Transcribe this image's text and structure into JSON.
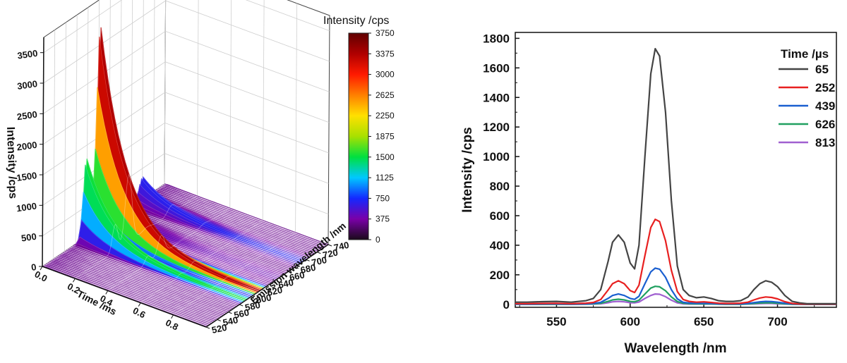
{
  "chart_data": [
    {
      "type": "surface",
      "xlabel": "Time /ms",
      "ylabel": "Emission wavelength /nm",
      "zlabel": "Intensity /cps",
      "xlim": [
        0,
        1.0
      ],
      "ylim": [
        520,
        740
      ],
      "zlim": [
        0,
        3750
      ],
      "x_ticks": [
        "0.0",
        "0.2",
        "0.4",
        "0.6",
        "0.8"
      ],
      "y_ticks": [
        "520",
        "540",
        "560",
        "580",
        "600",
        "620",
        "640",
        "660",
        "680",
        "700",
        "720",
        "740"
      ],
      "z_ticks": [
        "0",
        "500",
        "1000",
        "1500",
        "2000",
        "2500",
        "3000",
        "3500"
      ],
      "colorbar": {
        "title": "Intensity /cps",
        "ticks": [
          "0",
          "375",
          "750",
          "1125",
          "1500",
          "1875",
          "2250",
          "2625",
          "3000",
          "3375",
          "3750"
        ],
        "colors": [
          "#1a0a1a",
          "#7a00a8",
          "#1428ff",
          "#00c8ff",
          "#00e040",
          "#a8e000",
          "#ffe000",
          "#ff8000",
          "#ff1a00",
          "#b00000",
          "#600000"
        ]
      },
      "peaks": [
        {
          "wavelength": 592,
          "peak_intensity": 1500
        },
        {
          "wavelength": 616,
          "peak_intensity": 3750
        },
        {
          "wavelength": 650,
          "peak_intensity": 150
        },
        {
          "wavelength": 694,
          "peak_intensity": 450
        }
      ],
      "decay_tau_ms": 0.16,
      "grid": true
    },
    {
      "type": "line",
      "xlabel": "Wavelength /nm",
      "ylabel": "Intensity /cps",
      "xlim": [
        522,
        740
      ],
      "ylim": [
        -20,
        1840
      ],
      "x_ticks": [
        550,
        600,
        650,
        700
      ],
      "y_ticks": [
        0,
        200,
        400,
        600,
        800,
        1000,
        1200,
        1400,
        1600,
        1800
      ],
      "legend": {
        "title": "Time /µs",
        "position": "top-right"
      },
      "x": [
        522,
        530,
        540,
        550,
        560,
        570,
        575,
        580,
        585,
        588,
        592,
        596,
        600,
        603,
        606,
        610,
        614,
        617,
        620,
        624,
        628,
        632,
        636,
        640,
        645,
        650,
        655,
        660,
        665,
        670,
        675,
        680,
        684,
        688,
        692,
        696,
        700,
        705,
        710,
        715,
        720,
        730,
        740
      ],
      "series": [
        {
          "name": "65",
          "color": "#444444",
          "values": [
            15,
            15,
            18,
            20,
            15,
            25,
            40,
            100,
            290,
            420,
            470,
            420,
            280,
            240,
            400,
            1000,
            1560,
            1730,
            1680,
            1300,
            700,
            260,
            100,
            60,
            45,
            50,
            40,
            25,
            20,
            20,
            25,
            50,
            100,
            140,
            160,
            150,
            120,
            60,
            20,
            10,
            5,
            5,
            5
          ]
        },
        {
          "name": "252",
          "color": "#e82020",
          "values": [
            5,
            5,
            6,
            7,
            5,
            8,
            13,
            33,
            97,
            140,
            160,
            140,
            93,
            80,
            130,
            330,
            520,
            575,
            560,
            430,
            230,
            87,
            33,
            20,
            15,
            17,
            13,
            8,
            6,
            6,
            8,
            15,
            30,
            43,
            50,
            47,
            37,
            18,
            6,
            3,
            2,
            2,
            2
          ]
        },
        {
          "name": "439",
          "color": "#1a5fd0",
          "values": [
            2,
            2,
            3,
            3,
            2,
            4,
            6,
            14,
            40,
            60,
            70,
            60,
            40,
            34,
            55,
            140,
            220,
            245,
            238,
            183,
            99,
            37,
            14,
            9,
            7,
            7,
            6,
            4,
            3,
            3,
            3,
            6,
            12,
            17,
            20,
            19,
            15,
            8,
            3,
            2,
            1,
            1,
            1
          ]
        },
        {
          "name": "626",
          "color": "#20a060",
          "values": [
            1,
            1,
            1,
            1,
            1,
            2,
            3,
            7,
            20,
            30,
            35,
            30,
            20,
            17,
            28,
            70,
            110,
            122,
            119,
            92,
            50,
            19,
            7,
            5,
            3,
            3,
            3,
            2,
            1,
            1,
            1,
            3,
            6,
            9,
            10,
            10,
            8,
            4,
            1,
            1,
            0,
            0,
            0
          ]
        },
        {
          "name": "813",
          "color": "#a060d0",
          "values": [
            0,
            0,
            0,
            1,
            0,
            1,
            2,
            4,
            11,
            17,
            20,
            17,
            11,
            10,
            16,
            40,
            60,
            70,
            68,
            52,
            28,
            10,
            4,
            2,
            2,
            2,
            2,
            1,
            1,
            1,
            1,
            2,
            3,
            5,
            6,
            6,
            4,
            2,
            1,
            0,
            0,
            0,
            0
          ]
        }
      ]
    }
  ]
}
